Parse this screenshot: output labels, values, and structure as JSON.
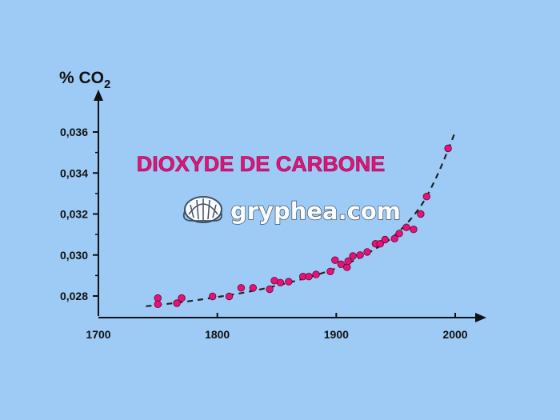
{
  "chart_data": {
    "type": "scatter",
    "title": "DIOXYDE DE CARBONE",
    "ylabel": "% CO",
    "ylabel_subscript": "2",
    "xlabel": "",
    "x_ticks": [
      "1700",
      "1800",
      "1900",
      "2000"
    ],
    "y_ticks": [
      "0,028",
      "0,030",
      "0,032",
      "0,034",
      "0,036"
    ],
    "xlim": [
      1700,
      2000
    ],
    "ylim": [
      0.0272,
      0.0378
    ],
    "grid": false,
    "legend": "none",
    "point_color": "#e8117a",
    "trend_line": "dashed exponential fit",
    "trend": {
      "x": [
        1740,
        1770,
        1800,
        1830,
        1860,
        1890,
        1910,
        1930,
        1950,
        1970,
        1985,
        2000
      ],
      "y": [
        0.0275,
        0.0277,
        0.02795,
        0.02825,
        0.02865,
        0.02915,
        0.0296,
        0.0302,
        0.031,
        0.0323,
        0.0339,
        0.036
      ]
    },
    "x": [
      1750,
      1750,
      1766,
      1770,
      1796,
      1810,
      1820,
      1830,
      1844,
      1848,
      1853,
      1860,
      1872,
      1877,
      1883,
      1895,
      1899,
      1904,
      1909,
      1910,
      1914,
      1920,
      1926,
      1933,
      1937,
      1941,
      1949,
      1953,
      1959,
      1965,
      1971,
      1976,
      1994
    ],
    "y": [
      0.0279,
      0.0276,
      0.02765,
      0.0279,
      0.02798,
      0.02798,
      0.0284,
      0.0284,
      0.02833,
      0.02875,
      0.02865,
      0.0287,
      0.02895,
      0.02895,
      0.02905,
      0.0292,
      0.02975,
      0.02955,
      0.0294,
      0.0297,
      0.02995,
      0.03,
      0.03015,
      0.03055,
      0.03055,
      0.03075,
      0.0308,
      0.03105,
      0.03135,
      0.03125,
      0.032,
      0.03285,
      0.0352
    ]
  },
  "watermark": {
    "text": "gryphea.com",
    "icon": "shell-logo-icon"
  }
}
